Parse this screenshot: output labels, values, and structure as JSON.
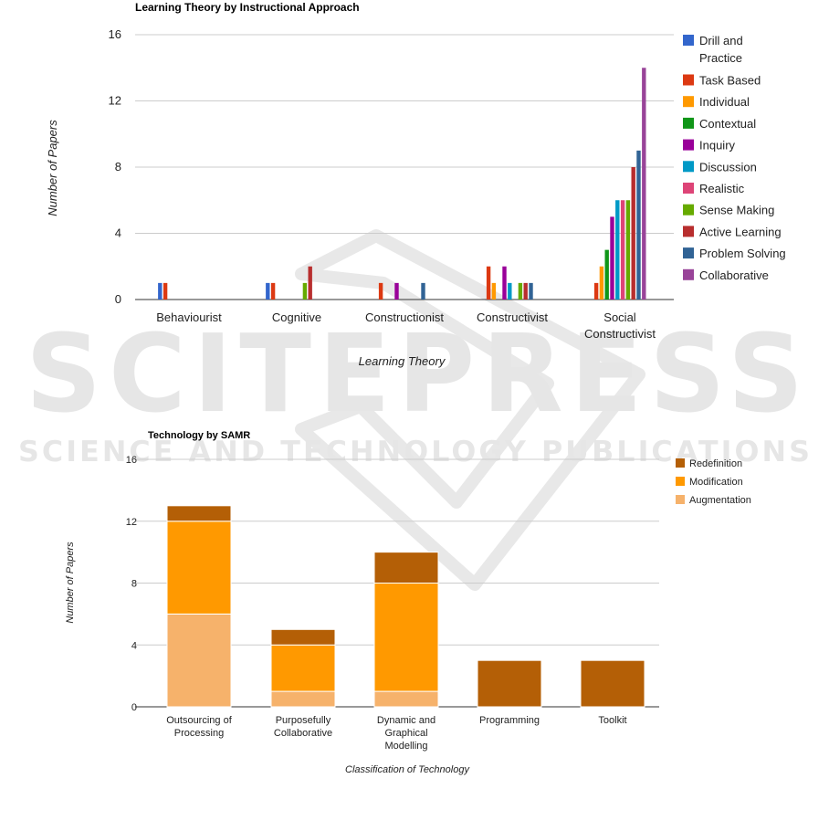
{
  "watermark": {
    "main": "SCITEPRESS",
    "sub": "SCIENCE AND TECHNOLOGY PUBLICATIONS"
  },
  "chart_data": [
    {
      "type": "bar",
      "title": "Learning Theory by Instructional Approach",
      "xlabel": "Learning Theory",
      "ylabel": "Number of Papers",
      "ylim": [
        0,
        16
      ],
      "yticks": [
        0,
        4,
        8,
        12,
        16
      ],
      "grid": true,
      "legend_position": "right",
      "categories": [
        "Behaviourist",
        "Cognitive",
        "Constructionist",
        "Constructivist",
        "Social Constructivist"
      ],
      "series": [
        {
          "name": "Drill and Practice",
          "color": "#3366cc",
          "values": [
            1,
            1,
            0,
            0,
            0
          ]
        },
        {
          "name": "Task Based",
          "color": "#dc3912",
          "values": [
            1,
            1,
            1,
            2,
            1
          ]
        },
        {
          "name": "Individual",
          "color": "#ff9900",
          "values": [
            0,
            0,
            0,
            1,
            2
          ]
        },
        {
          "name": "Contextual",
          "color": "#109618",
          "values": [
            0,
            0,
            0,
            0,
            3
          ]
        },
        {
          "name": "Inquiry",
          "color": "#990099",
          "values": [
            0,
            0,
            1,
            2,
            5
          ]
        },
        {
          "name": "Discussion",
          "color": "#0099c6",
          "values": [
            0,
            0,
            0,
            1,
            6
          ]
        },
        {
          "name": "Realistic",
          "color": "#dd4477",
          "values": [
            0,
            0,
            0,
            0,
            6
          ]
        },
        {
          "name": "Sense Making",
          "color": "#66aa00",
          "values": [
            0,
            1,
            0,
            1,
            6
          ]
        },
        {
          "name": "Active Learning",
          "color": "#b82e2e",
          "values": [
            0,
            2,
            0,
            1,
            8
          ]
        },
        {
          "name": "Problem Solving",
          "color": "#316395",
          "values": [
            0,
            0,
            1,
            1,
            9
          ]
        },
        {
          "name": "Collaborative",
          "color": "#994499",
          "values": [
            0,
            0,
            0,
            0,
            14
          ]
        }
      ]
    },
    {
      "type": "bar",
      "stacked": true,
      "title": "Technology by SAMR",
      "xlabel": "Classification of Technology",
      "ylabel": "Number of Papers",
      "ylim": [
        0,
        16
      ],
      "yticks": [
        0,
        4,
        8,
        12,
        16
      ],
      "grid": true,
      "legend_position": "top-right",
      "categories": [
        "Outsourcing of Processing",
        "Purposefully Collaborative",
        "Dynamic and Graphical Modelling",
        "Programming",
        "Toolkit"
      ],
      "series": [
        {
          "name": "Augmentation",
          "color": "#f6b26b",
          "values": [
            6,
            1,
            1,
            0,
            0
          ]
        },
        {
          "name": "Modification",
          "color": "#ff9900",
          "values": [
            6,
            3,
            7,
            0,
            0
          ]
        },
        {
          "name": "Redefinition",
          "color": "#b45f06",
          "values": [
            1,
            1,
            2,
            3,
            3
          ]
        }
      ],
      "legend_order": [
        "Redefinition",
        "Modification",
        "Augmentation"
      ]
    }
  ]
}
